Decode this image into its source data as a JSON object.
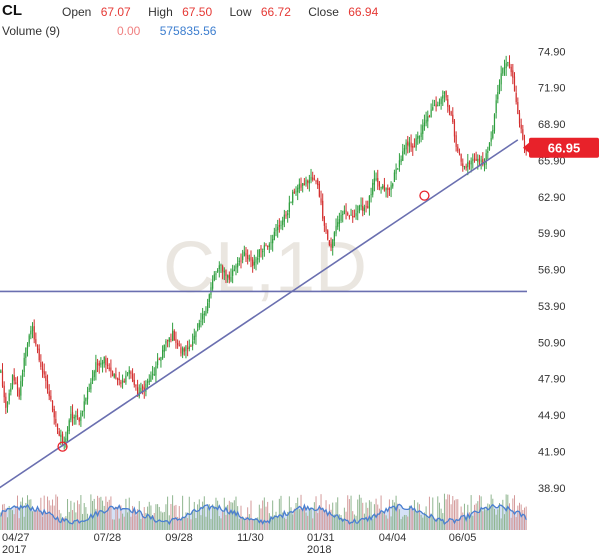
{
  "header": {
    "symbol": "CL",
    "open_label": "Open",
    "open_value": "67.07",
    "high_label": "High",
    "high_value": "67.50",
    "low_label": "Low",
    "low_value": "66.72",
    "close_label": "Close",
    "close_value": "66.94",
    "volume_label": "Volume (9)",
    "volume_value1": "0.00",
    "volume_value2": "575835.56"
  },
  "watermark": "CL,1D",
  "colors": {
    "up": "#2e9e3e",
    "down": "#d32f2f",
    "trendline": "#6a6fb0",
    "volume_line": "#4a7fd0",
    "volume_fill": "#b9cdf0",
    "price_tag": "#e8222a"
  },
  "chart_data": {
    "type": "candlestick",
    "ylim": [
      37.9,
      76.0
    ],
    "y_ticks": [
      "74.90",
      "71.90",
      "68.90",
      "65.90",
      "62.90",
      "59.90",
      "56.90",
      "53.90",
      "50.90",
      "47.90",
      "44.90",
      "41.90",
      "38.90"
    ],
    "x_ticks": [
      {
        "label": "04/27",
        "sub": "2017",
        "bar": 0
      },
      {
        "label": "07/28",
        "sub": "",
        "bar": 64
      },
      {
        "label": "09/28",
        "sub": "",
        "bar": 107
      },
      {
        "label": "11/30",
        "sub": "",
        "bar": 150
      },
      {
        "label": "01/31",
        "sub": "2018",
        "bar": 192
      },
      {
        "label": "04/04",
        "sub": "",
        "bar": 235
      },
      {
        "label": "06/05",
        "sub": "",
        "bar": 277
      }
    ],
    "last_price": "66.95",
    "horizontal_line": 55.1,
    "trendline": {
      "start": [
        -2,
        38.8
      ],
      "end": [
        310,
        67.6
      ]
    },
    "trendline_points": [
      [
        37,
        42.3
      ],
      [
        254,
        63.0
      ]
    ],
    "anchors": [
      [
        0,
        48.5
      ],
      [
        3,
        45.2
      ],
      [
        7,
        48.0
      ],
      [
        11,
        46.5
      ],
      [
        15,
        50.6
      ],
      [
        19,
        52.0
      ],
      [
        23,
        49.5
      ],
      [
        27,
        47.5
      ],
      [
        31,
        45.5
      ],
      [
        35,
        43.2
      ],
      [
        38,
        42.6
      ],
      [
        42,
        44.8
      ],
      [
        47,
        44.6
      ],
      [
        52,
        46.8
      ],
      [
        57,
        49.0
      ],
      [
        62,
        49.6
      ],
      [
        67,
        48.3
      ],
      [
        72,
        47.4
      ],
      [
        77,
        48.6
      ],
      [
        82,
        46.6
      ],
      [
        86,
        47.2
      ],
      [
        92,
        48.4
      ],
      [
        98,
        50.6
      ],
      [
        103,
        51.6
      ],
      [
        108,
        50.1
      ],
      [
        113,
        50.6
      ],
      [
        118,
        51.8
      ],
      [
        123,
        53.8
      ],
      [
        128,
        56.4
      ],
      [
        132,
        57.2
      ],
      [
        137,
        56.1
      ],
      [
        142,
        57.6
      ],
      [
        146,
        58.1
      ],
      [
        151,
        57.3
      ],
      [
        156,
        58.6
      ],
      [
        161,
        59.2
      ],
      [
        166,
        60.3
      ],
      [
        171,
        61.4
      ],
      [
        176,
        63.4
      ],
      [
        181,
        63.9
      ],
      [
        186,
        64.4
      ],
      [
        190,
        64.0
      ],
      [
        193,
        61.4
      ],
      [
        196,
        59.4
      ],
      [
        198,
        58.6
      ],
      [
        201,
        60.6
      ],
      [
        205,
        61.6
      ],
      [
        210,
        61.2
      ],
      [
        215,
        61.9
      ],
      [
        220,
        62.2
      ],
      [
        224,
        64.3
      ],
      [
        228,
        63.6
      ],
      [
        233,
        63.4
      ],
      [
        238,
        65.5
      ],
      [
        243,
        67.1
      ],
      [
        248,
        67.2
      ],
      [
        252,
        68.3
      ],
      [
        257,
        69.7
      ],
      [
        262,
        70.7
      ],
      [
        266,
        71.6
      ],
      [
        270,
        69.6
      ],
      [
        273,
        67.3
      ],
      [
        277,
        65.3
      ],
      [
        281,
        65.7
      ],
      [
        285,
        66.1
      ],
      [
        289,
        65.6
      ],
      [
        292,
        66.5
      ],
      [
        295,
        68.6
      ],
      [
        298,
        71.6
      ],
      [
        301,
        73.4
      ],
      [
        304,
        74.0
      ],
      [
        307,
        72.6
      ],
      [
        310,
        70.0
      ],
      [
        312,
        68.3
      ],
      [
        314,
        66.95
      ]
    ],
    "volume": {
      "ylim": [
        0,
        600000
      ],
      "last_value": 575835.56
    }
  }
}
